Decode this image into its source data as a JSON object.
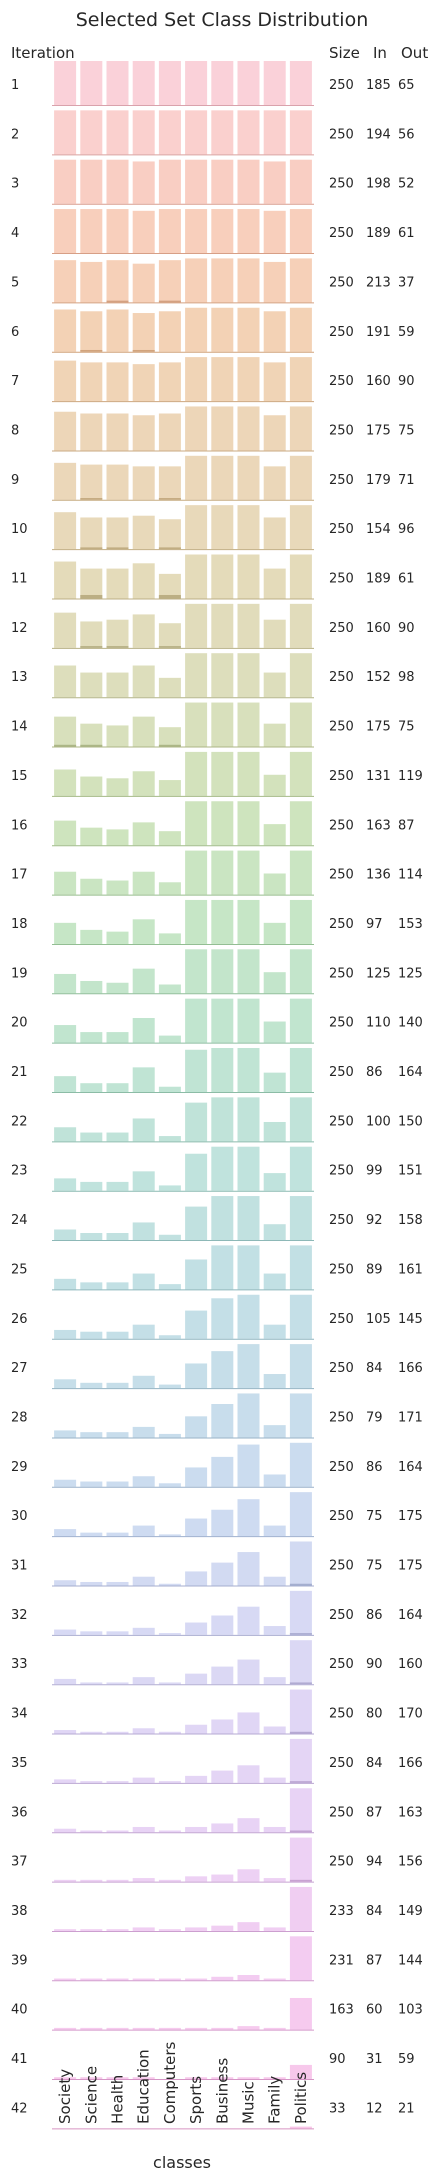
{
  "chart_data": {
    "type": "bar",
    "title": "Selected Set Class Distribution",
    "xlabel": "classes",
    "ylabel": "Iteration",
    "columns": [
      "Size",
      "In",
      "Out"
    ],
    "categories": [
      "Society",
      "Science",
      "Health",
      "Education",
      "Computers",
      "Sports",
      "Business",
      "Music",
      "Family",
      "Politics"
    ],
    "rows": [
      {
        "iteration": "1",
        "size": 250,
        "in": 185,
        "out": 65
      },
      {
        "iteration": "2",
        "size": 250,
        "in": 194,
        "out": 56
      },
      {
        "iteration": "3",
        "size": 250,
        "in": 198,
        "out": 52
      },
      {
        "iteration": "4",
        "size": 250,
        "in": 189,
        "out": 61
      },
      {
        "iteration": "5",
        "size": 250,
        "in": 213,
        "out": 37
      },
      {
        "iteration": "6",
        "size": 250,
        "in": 191,
        "out": 59
      },
      {
        "iteration": "7",
        "size": 250,
        "in": 160,
        "out": 90
      },
      {
        "iteration": "8",
        "size": 250,
        "in": 175,
        "out": 75
      },
      {
        "iteration": "9",
        "size": 250,
        "in": 179,
        "out": 71
      },
      {
        "iteration": "10",
        "size": 250,
        "in": 154,
        "out": 96
      },
      {
        "iteration": "11",
        "size": 250,
        "in": 189,
        "out": 61
      },
      {
        "iteration": "12",
        "size": 250,
        "in": 160,
        "out": 90
      },
      {
        "iteration": "13",
        "size": 250,
        "in": 152,
        "out": 98
      },
      {
        "iteration": "14",
        "size": 250,
        "in": 175,
        "out": 75
      },
      {
        "iteration": "15",
        "size": 250,
        "in": 131,
        "out": 119
      },
      {
        "iteration": "16",
        "size": 250,
        "in": 163,
        "out": 87
      },
      {
        "iteration": "17",
        "size": 250,
        "in": 136,
        "out": 114
      },
      {
        "iteration": "18",
        "size": 250,
        "in": 97,
        "out": 153
      },
      {
        "iteration": "19",
        "size": 250,
        "in": 125,
        "out": 125
      },
      {
        "iteration": "20",
        "size": 250,
        "in": 110,
        "out": 140
      },
      {
        "iteration": "21",
        "size": 250,
        "in": 86,
        "out": 164
      },
      {
        "iteration": "22",
        "size": 250,
        "in": 100,
        "out": 150
      },
      {
        "iteration": "23",
        "size": 250,
        "in": 99,
        "out": 151
      },
      {
        "iteration": "24",
        "size": 250,
        "in": 92,
        "out": 158
      },
      {
        "iteration": "25",
        "size": 250,
        "in": 89,
        "out": 161
      },
      {
        "iteration": "26",
        "size": 250,
        "in": 105,
        "out": 145
      },
      {
        "iteration": "27",
        "size": 250,
        "in": 84,
        "out": 166
      },
      {
        "iteration": "28",
        "size": 250,
        "in": 79,
        "out": 171
      },
      {
        "iteration": "29",
        "size": 250,
        "in": 86,
        "out": 164
      },
      {
        "iteration": "30",
        "size": 250,
        "in": 75,
        "out": 175
      },
      {
        "iteration": "31",
        "size": 250,
        "in": 75,
        "out": 175
      },
      {
        "iteration": "32",
        "size": 250,
        "in": 86,
        "out": 164
      },
      {
        "iteration": "33",
        "size": 250,
        "in": 90,
        "out": 160
      },
      {
        "iteration": "34",
        "size": 250,
        "in": 80,
        "out": 170
      },
      {
        "iteration": "35",
        "size": 250,
        "in": 84,
        "out": 166
      },
      {
        "iteration": "36",
        "size": 250,
        "in": 87,
        "out": 163
      },
      {
        "iteration": "37",
        "size": 250,
        "in": 94,
        "out": 156
      },
      {
        "iteration": "38",
        "size": 233,
        "in": 84,
        "out": 149
      },
      {
        "iteration": "39",
        "size": 231,
        "in": 87,
        "out": 144
      },
      {
        "iteration": "40",
        "size": 163,
        "in": 60,
        "out": 103
      },
      {
        "iteration": "41",
        "size": 90,
        "in": 31,
        "out": 59
      },
      {
        "iteration": "42",
        "size": 33,
        "in": 12,
        "out": 21
      }
    ],
    "series_out": [
      [
        25,
        25,
        25,
        25,
        25,
        25,
        25,
        25,
        25,
        25
      ],
      [
        25,
        25,
        25,
        25,
        25,
        25,
        25,
        25,
        25,
        25
      ],
      [
        25,
        25,
        25,
        24,
        25,
        25,
        25,
        25,
        24,
        26
      ],
      [
        25,
        25,
        25,
        24,
        25,
        25,
        25,
        25,
        24,
        26
      ],
      [
        24,
        23,
        24,
        22,
        24,
        25,
        25,
        25,
        23,
        28
      ],
      [
        24,
        23,
        24,
        22,
        23,
        26,
        26,
        26,
        23,
        28
      ],
      [
        23,
        22,
        22,
        21,
        22,
        27,
        27,
        27,
        22,
        30
      ],
      [
        22,
        21,
        21,
        20,
        21,
        28,
        28,
        28,
        20,
        32
      ],
      [
        21,
        20,
        20,
        19,
        19,
        29,
        29,
        29,
        19,
        34
      ],
      [
        21,
        18,
        18,
        19,
        17,
        30,
        30,
        31,
        18,
        36
      ],
      [
        21,
        17,
        17,
        20,
        14,
        31,
        31,
        31,
        17,
        38
      ],
      [
        20,
        15,
        16,
        19,
        14,
        31,
        31,
        31,
        16,
        38
      ],
      [
        18,
        14,
        14,
        18,
        11,
        32,
        32,
        32,
        14,
        40
      ],
      [
        17,
        13,
        12,
        17,
        11,
        33,
        33,
        33,
        13,
        41
      ],
      [
        15,
        11,
        10,
        14,
        9,
        34,
        34,
        36,
        12,
        43
      ],
      [
        14,
        10,
        9,
        13,
        8,
        34,
        34,
        36,
        12,
        45
      ],
      [
        13,
        9,
        8,
        13,
        7,
        33,
        34,
        38,
        12,
        46
      ],
      [
        12,
        8,
        7,
        14,
        6,
        30,
        34,
        37,
        12,
        47
      ],
      [
        11,
        7,
        6,
        14,
        5,
        28,
        35,
        38,
        12,
        49
      ],
      [
        10,
        6,
        6,
        14,
        4,
        26,
        34,
        38,
        12,
        50
      ],
      [
        9,
        5,
        5,
        14,
        3,
        24,
        33,
        38,
        11,
        52
      ],
      [
        8,
        5,
        5,
        13,
        3,
        22,
        31,
        37,
        11,
        52
      ],
      [
        7,
        5,
        5,
        11,
        3,
        21,
        29,
        36,
        10,
        52
      ],
      [
        6,
        4,
        4,
        10,
        3,
        19,
        27,
        34,
        9,
        51
      ],
      [
        6,
        4,
        4,
        9,
        3,
        17,
        25,
        32,
        9,
        51
      ],
      [
        5,
        4,
        4,
        8,
        2,
        16,
        23,
        30,
        8,
        50
      ],
      [
        5,
        3,
        3,
        7,
        2,
        14,
        21,
        28,
        8,
        50
      ],
      [
        4,
        3,
        3,
        6,
        2,
        12,
        19,
        26,
        7,
        49
      ],
      [
        4,
        3,
        3,
        6,
        2,
        11,
        17,
        24,
        7,
        48
      ],
      [
        4,
        2,
        2,
        6,
        1,
        10,
        15,
        21,
        6,
        47
      ],
      [
        3,
        2,
        2,
        5,
        1,
        8,
        13,
        19,
        5,
        46
      ],
      [
        3,
        2,
        2,
        4,
        1,
        7,
        11,
        16,
        5,
        45
      ],
      [
        3,
        1,
        1,
        4,
        1,
        6,
        10,
        14,
        4,
        44
      ],
      [
        2,
        1,
        1,
        3,
        1,
        5,
        8,
        12,
        4,
        42
      ],
      [
        2,
        1,
        1,
        3,
        1,
        4,
        7,
        10,
        3,
        40
      ],
      [
        2,
        1,
        1,
        3,
        1,
        3,
        5,
        8,
        3,
        38
      ],
      [
        1,
        1,
        1,
        2,
        1,
        3,
        4,
        7,
        2,
        36
      ],
      [
        1,
        1,
        1,
        2,
        1,
        2,
        3,
        5,
        2,
        32
      ],
      [
        1,
        1,
        1,
        1,
        1,
        1,
        2,
        3,
        1,
        28
      ],
      [
        1,
        1,
        1,
        1,
        1,
        1,
        1,
        2,
        1,
        18
      ],
      [
        1,
        1,
        1,
        1,
        0,
        1,
        1,
        1,
        1,
        8
      ],
      [
        0,
        0,
        0,
        0,
        0,
        0,
        0,
        0,
        0,
        1
      ]
    ],
    "series_in": [
      [
        0,
        0,
        0,
        0,
        0,
        0,
        0,
        0,
        0,
        0
      ],
      [
        0,
        0,
        0,
        0,
        0,
        0,
        0,
        0,
        0,
        0
      ],
      [
        0,
        0,
        0,
        0,
        0,
        0,
        0,
        0,
        0,
        0
      ],
      [
        0,
        0,
        0,
        0,
        0,
        0,
        0,
        0,
        0,
        0
      ],
      [
        0,
        0,
        1,
        0,
        1,
        0,
        0,
        0,
        0,
        0
      ],
      [
        0,
        1,
        0,
        1,
        0,
        0,
        0,
        0,
        0,
        0
      ],
      [
        0,
        0,
        0,
        0,
        0,
        0,
        0,
        0,
        0,
        0
      ],
      [
        0,
        0,
        0,
        0,
        0,
        0,
        0,
        0,
        0,
        0
      ],
      [
        0,
        1,
        0,
        0,
        1,
        0,
        0,
        0,
        0,
        0
      ],
      [
        0,
        1,
        1,
        0,
        1,
        0,
        0,
        0,
        0,
        0
      ],
      [
        0,
        2,
        0,
        0,
        2,
        0,
        0,
        0,
        0,
        0
      ],
      [
        0,
        1,
        1,
        0,
        1,
        0,
        0,
        0,
        0,
        0
      ],
      [
        0,
        0,
        0,
        0,
        0,
        0,
        0,
        0,
        0,
        0
      ],
      [
        1,
        1,
        0,
        0,
        1,
        0,
        0,
        0,
        0,
        0
      ],
      [
        0,
        0,
        0,
        0,
        0,
        0,
        0,
        0,
        0,
        0
      ],
      [
        0,
        0,
        0,
        0,
        0,
        0,
        0,
        0,
        0,
        0
      ],
      [
        0,
        0,
        0,
        0,
        0,
        0,
        0,
        0,
        0,
        0
      ],
      [
        0,
        0,
        0,
        0,
        0,
        0,
        0,
        0,
        0,
        0
      ],
      [
        0,
        0,
        0,
        0,
        0,
        0,
        0,
        0,
        0,
        0
      ],
      [
        0,
        0,
        0,
        0,
        0,
        0,
        0,
        0,
        0,
        0
      ],
      [
        0,
        0,
        0,
        0,
        0,
        0,
        0,
        0,
        0,
        0
      ],
      [
        0,
        0,
        0,
        0,
        0,
        0,
        0,
        0,
        0,
        0
      ],
      [
        0,
        0,
        0,
        0,
        0,
        0,
        0,
        0,
        0,
        0
      ],
      [
        0,
        0,
        0,
        0,
        0,
        0,
        0,
        0,
        0,
        0
      ],
      [
        0,
        0,
        0,
        0,
        0,
        0,
        0,
        0,
        0,
        0
      ],
      [
        0,
        0,
        0,
        0,
        0,
        0,
        0,
        0,
        0,
        0
      ],
      [
        0,
        0,
        0,
        0,
        0,
        0,
        0,
        0,
        0,
        0
      ],
      [
        0,
        0,
        0,
        0,
        0,
        0,
        0,
        0,
        0,
        0
      ],
      [
        0,
        0,
        0,
        0,
        0,
        0,
        0,
        0,
        0,
        0
      ],
      [
        0,
        0,
        0,
        0,
        0,
        0,
        0,
        0,
        0,
        0
      ],
      [
        0,
        0,
        0,
        0,
        0,
        0,
        0,
        0,
        0,
        1
      ],
      [
        0,
        0,
        0,
        0,
        0,
        0,
        0,
        0,
        0,
        1
      ],
      [
        0,
        0,
        0,
        0,
        0,
        0,
        0,
        0,
        0,
        1
      ],
      [
        0,
        0,
        0,
        0,
        0,
        0,
        0,
        0,
        0,
        1
      ],
      [
        0,
        0,
        0,
        0,
        0,
        0,
        0,
        0,
        0,
        1
      ],
      [
        0,
        0,
        0,
        0,
        0,
        0,
        0,
        0,
        0,
        1
      ],
      [
        0,
        0,
        0,
        0,
        0,
        0,
        0,
        0,
        0,
        1
      ],
      [
        0,
        0,
        0,
        0,
        0,
        0,
        0,
        0,
        0,
        0
      ],
      [
        0,
        0,
        0,
        0,
        0,
        0,
        0,
        0,
        0,
        0
      ],
      [
        0,
        0,
        0,
        0,
        0,
        0,
        0,
        0,
        0,
        0
      ],
      [
        0,
        0,
        0,
        0,
        0,
        0,
        0,
        0,
        0,
        0
      ],
      [
        0,
        0,
        0,
        0,
        0,
        0,
        0,
        0,
        0,
        0
      ]
    ],
    "ylim": [
      0,
      25
    ],
    "grid": false,
    "legend": "none",
    "colors": {
      "palette": [
        "#f7b8c4",
        "#f6b39c",
        "#eeb98d",
        "#e3c092",
        "#d8c695",
        "#cacc98",
        "#b8d498",
        "#a7d8a6",
        "#9fd6b8",
        "#9ed4c9",
        "#a2cfd6",
        "#a8cbe0",
        "#b3c8ea",
        "#c4c4ee",
        "#d4bff0",
        "#e4b7ee",
        "#f0afe7",
        "#f4a8dc"
      ],
      "background": "#ffffff",
      "text": "#262626"
    }
  }
}
